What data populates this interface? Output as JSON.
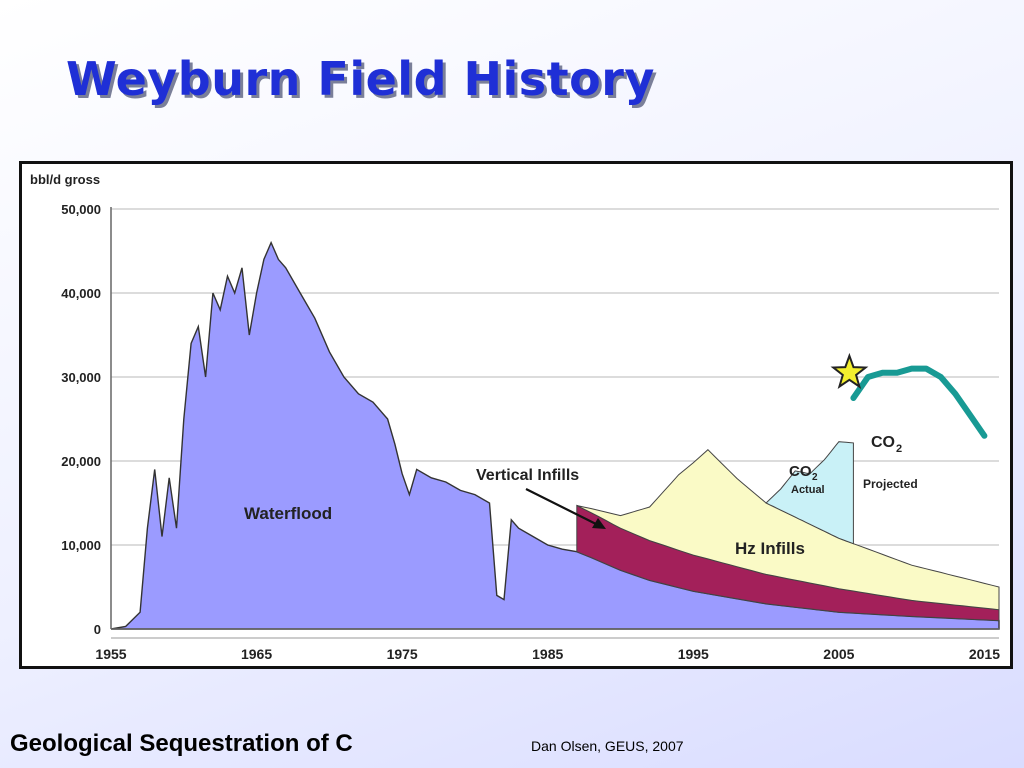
{
  "slide": {
    "title": "Weyburn Field History",
    "footer_left": "Geological Sequestration of C",
    "footer_right": "Dan Olsen, GEUS, 2007"
  },
  "chart_data": {
    "type": "area",
    "ylabel": "bbl/d gross",
    "xlim": [
      1955,
      2016
    ],
    "ylim": [
      0,
      50000
    ],
    "x_ticks": [
      1955,
      1965,
      1975,
      1985,
      1995,
      2005,
      2015
    ],
    "x_tick_labels": [
      "1955",
      "1965",
      "1975",
      "1985",
      "1995",
      "2005",
      "2015"
    ],
    "y_ticks": [
      0,
      10000,
      20000,
      30000,
      40000,
      50000
    ],
    "y_tick_labels": [
      "0",
      "10,000",
      "20,000",
      "30,000",
      "40,000",
      "50,000"
    ],
    "grid": true,
    "colors": {
      "waterflood": "#9b9bff",
      "vertical_infills": "#a3205a",
      "hz_infills": "#fafac6",
      "co2_actual": "#c9f1f7",
      "co2_projected": "#189a94",
      "star": "#f3ef2e"
    },
    "series": [
      {
        "name": "Waterflood",
        "x": [
          1955,
          1956,
          1957,
          1957.5,
          1958,
          1958.5,
          1959,
          1959.5,
          1960,
          1960.5,
          1961,
          1961.5,
          1962,
          1962.5,
          1963,
          1963.5,
          1964,
          1964.5,
          1965,
          1965.5,
          1966,
          1966.5,
          1967,
          1968,
          1969,
          1970,
          1971,
          1972,
          1973,
          1974,
          1974.5,
          1975,
          1975.5,
          1976,
          1977,
          1978,
          1979,
          1980,
          1981,
          1981.5,
          1982,
          1982.5,
          1983,
          1984,
          1985,
          1986,
          1987,
          1988,
          1990,
          1992,
          1995,
          2000,
          2005,
          2010,
          2016
        ],
        "values": [
          0,
          300,
          2000,
          12000,
          19000,
          11000,
          18000,
          12000,
          25000,
          34000,
          36000,
          30000,
          40000,
          38000,
          42000,
          40000,
          43000,
          35000,
          40000,
          44000,
          46000,
          44000,
          43000,
          40000,
          37000,
          33000,
          30000,
          28000,
          27000,
          25000,
          22000,
          18500,
          16000,
          19000,
          18000,
          17500,
          16500,
          16000,
          15000,
          4000,
          3500,
          13000,
          12000,
          11000,
          10000,
          9500,
          9200,
          8500,
          7000,
          5800,
          4500,
          3000,
          2000,
          1500,
          1000
        ]
      },
      {
        "name": "Vertical Infills",
        "x": [
          1987,
          1990,
          1995,
          2000,
          2005,
          2010,
          2016
        ],
        "values": [
          5500,
          5000,
          4300,
          3500,
          2800,
          1900,
          1300
        ]
      },
      {
        "name": "Hz Infills",
        "x": [
          1987,
          1990,
          1992,
          1994,
          1996,
          1998,
          2000,
          2005,
          2010,
          2016
        ],
        "values": [
          0,
          1500,
          4000,
          9000,
          13000,
          10500,
          8500,
          6000,
          4200,
          2700
        ]
      },
      {
        "name": "CO2 Actual",
        "x": [
          2000,
          2001,
          2002,
          2003,
          2004,
          2005,
          2006
        ],
        "values": [
          0,
          2500,
          5500,
          6000,
          8500,
          11500,
          12000
        ]
      },
      {
        "name": "CO2 Projected",
        "x": [
          2006,
          2007,
          2008,
          2009,
          2010,
          2011,
          2012,
          2013,
          2014,
          2015
        ],
        "values": [
          27500,
          30000,
          30500,
          30500,
          31000,
          31000,
          30000,
          28000,
          25500,
          23000
        ]
      }
    ],
    "annotations": {
      "waterflood": "Waterflood",
      "vertical_infills": "Vertical Infills",
      "hz_infills": "Hz Infills",
      "co2_actual_line1": "CO",
      "co2_actual_sub": "2",
      "co2_actual_line2": "Actual",
      "co2_projected_line1": "CO",
      "co2_projected_sub": "2",
      "co2_projected_line2": "Projected"
    }
  }
}
